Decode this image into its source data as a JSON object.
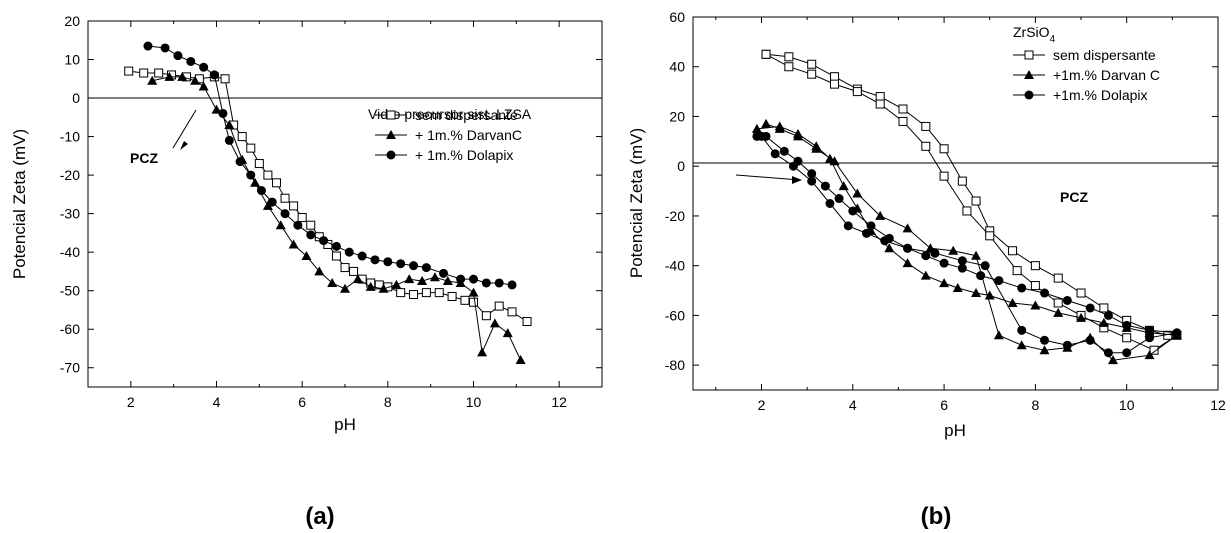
{
  "chart_data": [
    {
      "type": "line",
      "panel_label": "(a)",
      "title": "",
      "legend_title": "Vidro precursor sist. LZSA",
      "xlabel": "pH",
      "ylabel": "Potencial Zeta (mV)",
      "xlim": [
        1,
        13
      ],
      "ylim": [
        -75,
        20
      ],
      "xticks": [
        2,
        4,
        6,
        8,
        10,
        12
      ],
      "yticks": [
        20,
        10,
        0,
        -10,
        -20,
        -30,
        -40,
        -50,
        -60,
        -70
      ],
      "zero_line": true,
      "legend_position": "top-right",
      "annotation": {
        "text": "PCZ",
        "x": 2.9,
        "y": -15,
        "arrow_to": [
          4.0,
          0
        ]
      },
      "series": [
        {
          "name": "sem dispersante",
          "marker": "square-open",
          "x": [
            1.95,
            2.3,
            2.65,
            2.95,
            3.3,
            3.6,
            3.95,
            4.2,
            4.4,
            4.6,
            4.8,
            5.0,
            5.2,
            5.4,
            5.6,
            5.8,
            6.0,
            6.2,
            6.4,
            6.6,
            6.8,
            7.0,
            7.2,
            7.4,
            7.6,
            7.8,
            8.0,
            8.3,
            8.6,
            8.9,
            9.2,
            9.5,
            9.8,
            10.0,
            10.3,
            10.6,
            10.9,
            11.25
          ],
          "y": [
            7,
            6.5,
            6.5,
            6,
            5.5,
            5,
            5.5,
            5,
            -7,
            -10,
            -13,
            -17,
            -20,
            -22,
            -26,
            -28,
            -31,
            -33,
            -36,
            -38,
            -41,
            -44,
            -45,
            -47,
            -48,
            -48.5,
            -49,
            -50.5,
            -51,
            -50.5,
            -50.5,
            -51.5,
            -52.5,
            -53,
            -56.5,
            -54,
            -55.5,
            -58
          ]
        },
        {
          "name": "+ 1m.% DarvanC",
          "marker": "triangle-filled",
          "x": [
            2.5,
            2.9,
            3.2,
            3.5,
            3.7,
            4.0,
            4.3,
            4.6,
            4.9,
            5.2,
            5.5,
            5.8,
            6.1,
            6.4,
            6.7,
            7.0,
            7.3,
            7.6,
            7.9,
            8.2,
            8.5,
            8.8,
            9.1,
            9.4,
            9.7,
            10.0,
            10.2,
            10.5,
            10.8,
            11.1
          ],
          "y": [
            4.5,
            5.5,
            5.5,
            4.5,
            3,
            -3,
            -7,
            -16,
            -22,
            -28,
            -33,
            -38,
            -41,
            -45,
            -48,
            -49.5,
            -47,
            -49,
            -49.5,
            -48.5,
            -47,
            -47.5,
            -46.5,
            -47.5,
            -48,
            -50.5,
            -66,
            -58.5,
            -61,
            -68
          ]
        },
        {
          "name": "+ 1m.% Dolapix",
          "marker": "circle-filled",
          "x": [
            2.4,
            2.8,
            3.1,
            3.4,
            3.7,
            3.95,
            4.15,
            4.3,
            4.55,
            4.8,
            5.05,
            5.3,
            5.6,
            5.9,
            6.2,
            6.5,
            6.8,
            7.1,
            7.4,
            7.7,
            8.0,
            8.3,
            8.6,
            8.9,
            9.3,
            9.7,
            10.0,
            10.3,
            10.6,
            10.9
          ],
          "y": [
            13.5,
            13,
            11,
            9.5,
            8,
            6,
            -4,
            -11,
            -16.5,
            -20,
            -24,
            -27,
            -30,
            -33,
            -35.5,
            -37,
            -38.5,
            -40,
            -41,
            -42,
            -42.5,
            -43,
            -43.5,
            -44,
            -45.5,
            -47,
            -47,
            -48,
            -48,
            -48.5
          ]
        }
      ]
    },
    {
      "type": "line",
      "panel_label": "(b)",
      "title": "",
      "legend_title": "ZrSiO",
      "legend_title_sub": "4",
      "xlabel": "pH",
      "ylabel": "Potencial Zeta (mV)",
      "xlim": [
        0.5,
        12
      ],
      "ylim": [
        -90,
        60
      ],
      "xticks": [
        2,
        4,
        6,
        8,
        10,
        12
      ],
      "yticks": [
        60,
        40,
        20,
        0,
        -20,
        -40,
        -60,
        -80
      ],
      "zero_line": true,
      "legend_position": "top-right",
      "annotation": {
        "text": "PCZ",
        "x": 8.5,
        "y": -15,
        "arrow_from": [
          6.8,
          -5
        ],
        "arrow_to": [
          8.5,
          -8
        ]
      },
      "series": [
        {
          "name": "sem dispersante",
          "marker": "square-open",
          "x": [
            2.1,
            2.6,
            3.1,
            3.6,
            4.1,
            4.6,
            5.1,
            5.6,
            6.0,
            6.4,
            6.7,
            7.0,
            7.5,
            8.0,
            8.5,
            9.0,
            9.5,
            10.0,
            10.5,
            10.9,
            11.1,
            10.6,
            10.0,
            9.5,
            9.0,
            8.5,
            8.0,
            7.6,
            7.0,
            6.5,
            6.0,
            5.6,
            5.1,
            4.6,
            4.1,
            3.6,
            3.1,
            2.6,
            2.1
          ],
          "y": [
            45,
            44,
            41,
            36,
            31,
            28,
            23,
            16,
            7,
            -6,
            -14,
            -26,
            -34,
            -40,
            -45,
            -51,
            -57,
            -62,
            -66,
            -68,
            -68,
            -74,
            -69,
            -65,
            -60,
            -55,
            -48,
            -42,
            -28,
            -18,
            -4,
            8,
            18,
            25,
            30,
            33,
            37,
            40,
            45
          ]
        },
        {
          "name": "+1m.% Darvan C",
          "marker": "triangle-filled",
          "x": [
            1.9,
            2.4,
            2.8,
            3.2,
            3.5,
            3.8,
            4.1,
            4.4,
            4.8,
            5.2,
            5.6,
            6.0,
            6.3,
            6.7,
            7.0,
            7.5,
            8.0,
            8.5,
            9.0,
            9.5,
            10.0,
            10.5,
            11.1,
            10.5,
            9.7,
            9.2,
            8.7,
            8.2,
            7.7,
            7.2,
            6.7,
            6.2,
            5.7,
            5.2,
            4.6,
            4.1,
            3.6,
            3.2,
            2.8,
            2.4,
            2.1
          ],
          "y": [
            15,
            16,
            13,
            8,
            3,
            -8,
            -17,
            -26,
            -33,
            -39,
            -44,
            -47,
            -49,
            -51,
            -52,
            -55,
            -56,
            -59,
            -61,
            -63,
            -65,
            -67,
            -68,
            -76,
            -78,
            -69,
            -73,
            -74,
            -72,
            -68,
            -36,
            -34,
            -33,
            -25,
            -20,
            -11,
            2,
            7,
            12,
            15,
            17
          ]
        },
        {
          "name": "+1m.% Dolapix",
          "marker": "circle-filled",
          "x": [
            1.9,
            2.1,
            2.5,
            2.8,
            3.1,
            3.4,
            3.7,
            4.0,
            4.4,
            4.8,
            5.2,
            5.6,
            6.0,
            6.4,
            6.8,
            7.2,
            7.7,
            8.2,
            8.7,
            9.2,
            9.6,
            10.0,
            10.5,
            11.1,
            10.5,
            10.0,
            9.6,
            9.2,
            8.7,
            8.2,
            7.7,
            6.9,
            6.4,
            5.8,
            5.2,
            4.7,
            4.3,
            3.9,
            3.5,
            3.1,
            2.7,
            2.3,
            2.0
          ],
          "y": [
            12,
            12,
            6,
            2,
            -3,
            -8,
            -13,
            -18,
            -24,
            -29,
            -33,
            -36,
            -39,
            -41,
            -44,
            -46,
            -49,
            -51,
            -54,
            -57,
            -60,
            -64,
            -66,
            -67,
            -69,
            -75,
            -75,
            -70,
            -72,
            -70,
            -66,
            -40,
            -38,
            -35,
            -33,
            -30,
            -27,
            -24,
            -15,
            -6,
            0,
            5,
            12
          ]
        }
      ]
    }
  ],
  "labels": {
    "left_panel": "(a)",
    "right_panel": "(b)",
    "pcz": "PCZ"
  }
}
